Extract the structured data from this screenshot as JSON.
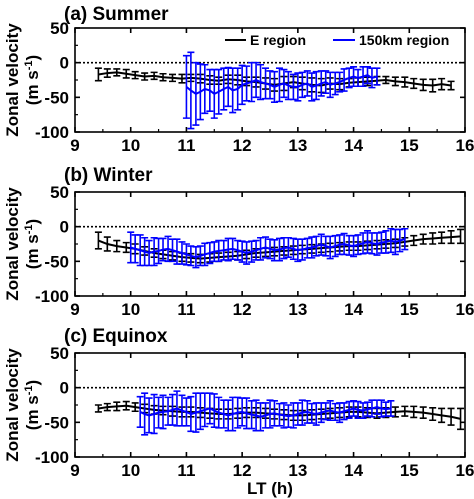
{
  "figure": {
    "ylabel_line1": "Zonal velocity",
    "ylabel_line2": "(m s",
    "ylabel_sup": "-1",
    "ylabel_close": ")",
    "xlabel": "LT (h)"
  },
  "colors": {
    "e_region": "#000000",
    "km150_region": "#0000ff",
    "axis": "#000000"
  },
  "legend": {
    "items": [
      {
        "label": "E region",
        "color": "#000000"
      },
      {
        "label": "150km region",
        "color": "#0000ff"
      }
    ],
    "placement": "top-right, panel (a)"
  },
  "chart_data": [
    {
      "type": "line",
      "title": "(a) Summer",
      "xlim": [
        9,
        16
      ],
      "ylim": [
        -100,
        50
      ],
      "xticks": [
        9,
        10,
        11,
        12,
        13,
        14,
        15,
        16
      ],
      "yticks": [
        50,
        0,
        -50,
        -100
      ],
      "reference_line": 0,
      "series": [
        {
          "name": "E region",
          "color": "#000000",
          "x": [
            9.42,
            9.58,
            9.75,
            9.92,
            10.08,
            10.25,
            10.42,
            10.58,
            10.75,
            10.92,
            11.08,
            11.25,
            11.42,
            11.58,
            11.75,
            11.92,
            12.08,
            12.25,
            12.42,
            12.58,
            12.75,
            12.92,
            13.08,
            13.25,
            13.42,
            13.58,
            13.75,
            13.92,
            14.08,
            14.25,
            14.42,
            14.58,
            14.75,
            14.92,
            15.08,
            15.25,
            15.42,
            15.58,
            15.75
          ],
          "y": [
            -17,
            -15,
            -14,
            -16,
            -18,
            -20,
            -19,
            -21,
            -22,
            -23,
            -22,
            -23,
            -25,
            -26,
            -24,
            -25,
            -27,
            -28,
            -30,
            -32,
            -30,
            -28,
            -30,
            -32,
            -33,
            -30,
            -31,
            -29,
            -28,
            -27,
            -26,
            -25,
            -27,
            -28,
            -30,
            -32,
            -33,
            -31,
            -33
          ],
          "err": [
            9,
            6,
            5,
            6,
            5,
            5,
            5,
            5,
            5,
            6,
            5,
            6,
            6,
            5,
            6,
            7,
            6,
            7,
            8,
            9,
            10,
            8,
            9,
            10,
            10,
            8,
            8,
            6,
            6,
            6,
            6,
            5,
            6,
            7,
            7,
            8,
            9,
            8,
            6
          ]
        },
        {
          "name": "150km region",
          "color": "#0000ff",
          "x": [
            11.0,
            11.08,
            11.17,
            11.25,
            11.33,
            11.42,
            11.5,
            11.58,
            11.67,
            11.75,
            11.83,
            11.92,
            12.0,
            12.08,
            12.17,
            12.25,
            12.33,
            12.42,
            12.5,
            12.58,
            12.67,
            12.75,
            12.83,
            12.92,
            13.0,
            13.08,
            13.17,
            13.25,
            13.33,
            13.42,
            13.5,
            13.58,
            13.67,
            13.75,
            13.83,
            13.92,
            14.0,
            14.08,
            14.17,
            14.25,
            14.33,
            14.42
          ],
          "y": [
            -35,
            -40,
            -45,
            -42,
            -38,
            -40,
            -45,
            -42,
            -38,
            -35,
            -40,
            -38,
            -32,
            -30,
            -28,
            -25,
            -28,
            -30,
            -32,
            -35,
            -32,
            -30,
            -33,
            -35,
            -35,
            -32,
            -30,
            -35,
            -33,
            -30,
            -28,
            -32,
            -30,
            -28,
            -25,
            -22,
            -20,
            -22,
            -20,
            -18,
            -22,
            -20
          ],
          "err": [
            45,
            55,
            45,
            40,
            35,
            30,
            35,
            32,
            30,
            28,
            32,
            30,
            28,
            25,
            28,
            25,
            25,
            22,
            20,
            22,
            24,
            20,
            20,
            18,
            20,
            18,
            18,
            20,
            20,
            18,
            16,
            18,
            16,
            14,
            16,
            14,
            14,
            12,
            14,
            12,
            14,
            12
          ]
        }
      ]
    },
    {
      "type": "line",
      "title": "(b) Winter",
      "xlim": [
        9,
        16
      ],
      "ylim": [
        -100,
        50
      ],
      "xticks": [
        9,
        10,
        11,
        12,
        13,
        14,
        15,
        16
      ],
      "yticks": [
        50,
        0,
        -50,
        -100
      ],
      "reference_line": 0,
      "series": [
        {
          "name": "E region",
          "color": "#000000",
          "x": [
            9.42,
            9.58,
            9.75,
            9.92,
            10.08,
            10.25,
            10.42,
            10.58,
            10.75,
            10.92,
            11.08,
            11.25,
            11.42,
            11.58,
            11.75,
            11.92,
            12.08,
            12.25,
            12.42,
            12.58,
            12.75,
            12.92,
            13.08,
            13.25,
            13.42,
            13.58,
            13.75,
            13.92,
            14.08,
            14.25,
            14.42,
            14.58,
            14.75,
            14.92,
            15.08,
            15.25,
            15.42,
            15.58,
            15.75,
            15.92
          ],
          "y": [
            -20,
            -25,
            -28,
            -30,
            -32,
            -35,
            -38,
            -40,
            -42,
            -44,
            -45,
            -46,
            -45,
            -44,
            -43,
            -42,
            -40,
            -38,
            -37,
            -36,
            -35,
            -34,
            -33,
            -32,
            -31,
            -30,
            -29,
            -28,
            -28,
            -27,
            -26,
            -25,
            -24,
            -22,
            -20,
            -18,
            -17,
            -16,
            -15,
            -14
          ],
          "err": [
            12,
            10,
            8,
            7,
            7,
            6,
            6,
            6,
            6,
            6,
            6,
            6,
            6,
            6,
            6,
            6,
            6,
            6,
            6,
            6,
            6,
            6,
            6,
            6,
            6,
            6,
            6,
            6,
            6,
            6,
            6,
            6,
            6,
            6,
            7,
            7,
            8,
            8,
            9,
            10
          ]
        },
        {
          "name": "150km region",
          "color": "#0000ff",
          "x": [
            10.0,
            10.08,
            10.17,
            10.25,
            10.33,
            10.42,
            10.5,
            10.58,
            10.67,
            10.75,
            10.83,
            10.92,
            11.0,
            11.08,
            11.17,
            11.25,
            11.33,
            11.42,
            11.5,
            11.58,
            11.67,
            11.75,
            11.83,
            11.92,
            12.0,
            12.08,
            12.17,
            12.25,
            12.33,
            12.42,
            12.5,
            12.58,
            12.67,
            12.75,
            12.83,
            12.92,
            13.0,
            13.08,
            13.17,
            13.25,
            13.33,
            13.42,
            13.5,
            13.58,
            13.67,
            13.75,
            13.83,
            13.92,
            14.0,
            14.08,
            14.17,
            14.25,
            14.33,
            14.42,
            14.5,
            14.58,
            14.67,
            14.75,
            14.83,
            14.92
          ],
          "y": [
            -30,
            -32,
            -34,
            -36,
            -38,
            -36,
            -35,
            -33,
            -32,
            -34,
            -36,
            -38,
            -40,
            -42,
            -44,
            -42,
            -40,
            -38,
            -36,
            -35,
            -34,
            -33,
            -32,
            -34,
            -36,
            -38,
            -36,
            -34,
            -32,
            -30,
            -32,
            -34,
            -33,
            -31,
            -30,
            -32,
            -34,
            -33,
            -31,
            -30,
            -28,
            -26,
            -28,
            -30,
            -28,
            -26,
            -25,
            -27,
            -28,
            -26,
            -24,
            -22,
            -24,
            -25,
            -23,
            -22,
            -20,
            -22,
            -20,
            -18
          ],
          "err": [
            22,
            20,
            22,
            20,
            18,
            20,
            18,
            16,
            18,
            16,
            18,
            16,
            15,
            14,
            15,
            14,
            16,
            15,
            14,
            15,
            14,
            16,
            15,
            14,
            15,
            16,
            15,
            14,
            16,
            15,
            14,
            15,
            16,
            15,
            14,
            15,
            16,
            15,
            14,
            15,
            14,
            15,
            14,
            16,
            15,
            14,
            15,
            14,
            15,
            14,
            15,
            16,
            15,
            16,
            15,
            16,
            17,
            18,
            16,
            15
          ]
        }
      ]
    },
    {
      "type": "line",
      "title": "(c) Equinox",
      "xlim": [
        9,
        16
      ],
      "ylim": [
        -100,
        50
      ],
      "xticks": [
        9,
        10,
        11,
        12,
        13,
        14,
        15,
        16
      ],
      "yticks": [
        50,
        0,
        -50,
        -100
      ],
      "reference_line": 0,
      "series": [
        {
          "name": "E region",
          "color": "#000000",
          "x": [
            9.42,
            9.58,
            9.75,
            9.92,
            10.08,
            10.25,
            10.42,
            10.58,
            10.75,
            10.92,
            11.08,
            11.25,
            11.42,
            11.58,
            11.75,
            11.92,
            12.08,
            12.25,
            12.42,
            12.58,
            12.75,
            12.92,
            13.08,
            13.25,
            13.42,
            13.58,
            13.75,
            13.92,
            14.08,
            14.25,
            14.42,
            14.58,
            14.75,
            14.92,
            15.08,
            15.25,
            15.42,
            15.58,
            15.75,
            15.92
          ],
          "y": [
            -30,
            -28,
            -27,
            -26,
            -28,
            -30,
            -32,
            -33,
            -34,
            -35,
            -35,
            -36,
            -37,
            -38,
            -38,
            -37,
            -36,
            -36,
            -37,
            -38,
            -39,
            -40,
            -40,
            -39,
            -38,
            -37,
            -36,
            -35,
            -35,
            -36,
            -37,
            -36,
            -35,
            -34,
            -35,
            -36,
            -38,
            -40,
            -42,
            -45
          ],
          "err": [
            5,
            5,
            6,
            6,
            6,
            6,
            6,
            6,
            7,
            7,
            7,
            7,
            7,
            7,
            7,
            7,
            7,
            7,
            7,
            7,
            7,
            7,
            7,
            7,
            7,
            7,
            7,
            7,
            7,
            7,
            7,
            7,
            7,
            7,
            8,
            8,
            9,
            10,
            12,
            15
          ]
        },
        {
          "name": "150km region",
          "color": "#0000ff",
          "x": [
            10.17,
            10.25,
            10.33,
            10.42,
            10.5,
            10.58,
            10.67,
            10.75,
            10.83,
            10.92,
            11.0,
            11.08,
            11.17,
            11.25,
            11.33,
            11.42,
            11.5,
            11.58,
            11.67,
            11.75,
            11.83,
            11.92,
            12.0,
            12.08,
            12.17,
            12.25,
            12.33,
            12.42,
            12.5,
            12.58,
            12.67,
            12.75,
            12.83,
            12.92,
            13.0,
            13.08,
            13.17,
            13.25,
            13.33,
            13.42,
            13.5,
            13.58,
            13.67,
            13.75,
            13.83,
            13.92,
            14.0,
            14.08,
            14.17,
            14.25,
            14.33,
            14.42,
            14.5,
            14.58,
            14.67
          ],
          "y": [
            -35,
            -38,
            -40,
            -38,
            -36,
            -35,
            -34,
            -32,
            -30,
            -33,
            -35,
            -38,
            -36,
            -34,
            -32,
            -30,
            -33,
            -36,
            -38,
            -40,
            -38,
            -36,
            -35,
            -37,
            -39,
            -40,
            -42,
            -40,
            -38,
            -37,
            -39,
            -40,
            -41,
            -40,
            -38,
            -36,
            -35,
            -37,
            -38,
            -36,
            -34,
            -33,
            -35,
            -36,
            -34,
            -32,
            -30,
            -32,
            -33,
            -31,
            -30,
            -28,
            -30,
            -31,
            -30
          ],
          "err": [
            22,
            30,
            25,
            28,
            22,
            24,
            20,
            22,
            25,
            22,
            20,
            25,
            28,
            26,
            24,
            22,
            24,
            22,
            20,
            22,
            24,
            22,
            20,
            22,
            20,
            22,
            20,
            18,
            20,
            18,
            16,
            18,
            16,
            18,
            16,
            18,
            16,
            14,
            16,
            14,
            12,
            14,
            12,
            14,
            12,
            12,
            11,
            12,
            11,
            10,
            12,
            10,
            12,
            10,
            11
          ]
        }
      ]
    }
  ]
}
